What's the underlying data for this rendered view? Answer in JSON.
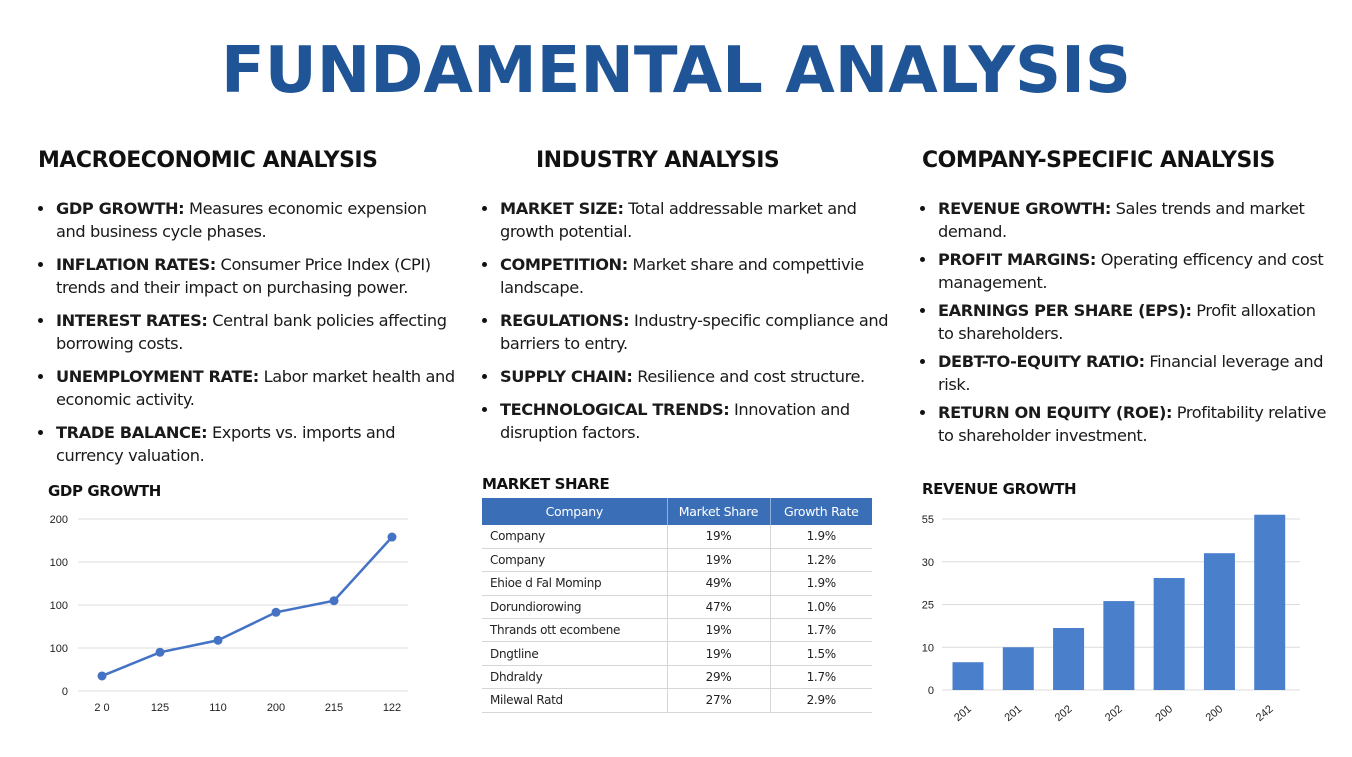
{
  "title": "FUNDAMENTAL ANALYSIS",
  "columns": [
    {
      "heading": "MACROECONOMIC ANALYSIS",
      "items": [
        {
          "term": "GDP GROWTH:",
          "text": " Measures economic expension and business cycle phases."
        },
        {
          "term": "INFLATION RATES:",
          "text": " Consumer Price Index (CPI) trends and their impact on purchasing power."
        },
        {
          "term": "INTEREST RATES:",
          "text": " Central bank policies affecting borrowing costs."
        },
        {
          "term": "UNEMPLOYMENT RATE:",
          "text": " Labor market health and economic activity."
        },
        {
          "term": "TRADE BALANCE:",
          "text": " Exports vs. imports and currency valuation."
        }
      ]
    },
    {
      "heading": "INDUSTRY ANALYSIS",
      "items": [
        {
          "term": "MARKET SIZE:",
          "text": " Total addressable market and growth potential."
        },
        {
          "term": "COMPETITION:",
          "text": " Market share and compettivie landscape."
        },
        {
          "term": "REGULATIONS:",
          "text": " Industry-specific compliance and barriers to entry."
        },
        {
          "term": "SUPPLY CHAIN:",
          "text": " Resilience and cost structure."
        },
        {
          "term": "TECHNOLOGICAL TRENDS:",
          "text": " Innovation and disruption factors."
        }
      ]
    },
    {
      "heading": "COMPANY-SPECIFIC ANALYSIS",
      "items": [
        {
          "term": "REVENUE GROWTH:",
          "text": " Sales trends and market demand."
        },
        {
          "term": "PROFIT MARGINS:",
          "text": " Operating efficency and cost management."
        },
        {
          "term": "EARNINGS PER SHARE (EPS):",
          "text": " Profit alloxation to shareholders."
        },
        {
          "term": "DEBT-TO-EQUITY RATIO:",
          "text": " Financial leverage and risk."
        },
        {
          "term": "RETURN ON EQUITY (ROE):",
          "text": " Profitability relative to shareholder investment."
        }
      ]
    }
  ],
  "chart_data": [
    {
      "type": "line",
      "title": "GDP GROWTH",
      "xlabel": "",
      "ylabel": "",
      "x": [
        "2 0",
        "125",
        "110",
        "200",
        "215",
        "122"
      ],
      "y_tick_labels": [
        "0",
        "100",
        "100",
        "100",
        "200"
      ],
      "values": [
        0.35,
        0.9,
        1.18,
        1.83,
        2.1,
        3.58
      ],
      "ylim": [
        0,
        4
      ],
      "color": "#4472c4",
      "grid": true
    },
    {
      "type": "table",
      "title": "MARKET SHARE",
      "headers": [
        "Company",
        "Market Share",
        "Growth Rate"
      ],
      "rows": [
        [
          "Company",
          "19%",
          "1.9%"
        ],
        [
          "Company",
          "19%",
          "1.2%"
        ],
        [
          "Ehioe d Fal Mominp",
          "49%",
          "1.9%"
        ],
        [
          "Dorundiorowing",
          "47%",
          "1.0%"
        ],
        [
          "Thrands ott ecombene",
          "19%",
          "1.7%"
        ],
        [
          "Dngtline",
          "19%",
          "1.5%"
        ],
        [
          "Dhdraldy",
          "29%",
          "1.7%"
        ],
        [
          "Milewal Ratd",
          "27%",
          "2.9%"
        ]
      ],
      "header_color": "#3a6fb8"
    },
    {
      "type": "bar",
      "title": "REVENUE GROWTH",
      "xlabel": "",
      "ylabel": "",
      "categories": [
        "201",
        "201",
        "202",
        "202",
        "200",
        "200",
        "242"
      ],
      "y_tick_labels": [
        "0",
        "10",
        "25",
        "30",
        "55"
      ],
      "values": [
        0.65,
        1.0,
        1.45,
        2.08,
        2.62,
        3.2,
        4.1
      ],
      "ylim": [
        0,
        4
      ],
      "color": "#4a7fcc",
      "grid": true
    }
  ]
}
